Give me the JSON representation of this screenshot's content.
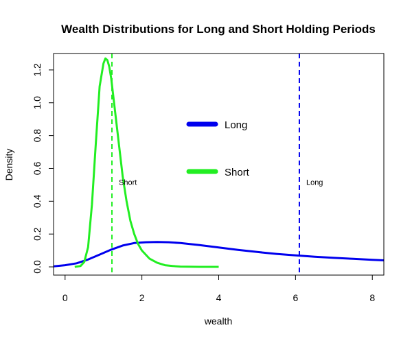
{
  "chart_data": {
    "type": "line",
    "title": "Wealth Distributions for Long and Short Holding Periods",
    "xlabel": "wealth",
    "ylabel": "Density",
    "xlim": [
      -0.3,
      8.3
    ],
    "ylim": [
      -0.05,
      1.3
    ],
    "xticks": [
      0,
      2,
      4,
      6,
      8
    ],
    "yticks": [
      0.0,
      0.2,
      0.4,
      0.6,
      0.8,
      1.0,
      1.2
    ],
    "legend_position": "center",
    "series": [
      {
        "name": "Long",
        "color": "#0000ee",
        "x": [
          -0.3,
          0,
          0.3,
          0.6,
          0.9,
          1.2,
          1.5,
          1.8,
          2.1,
          2.4,
          2.7,
          3.0,
          3.5,
          4.0,
          4.5,
          5.0,
          5.5,
          6.0,
          6.5,
          7.0,
          7.5,
          8.0,
          8.3
        ],
        "y": [
          0.003,
          0.01,
          0.022,
          0.045,
          0.075,
          0.105,
          0.13,
          0.145,
          0.15,
          0.152,
          0.15,
          0.145,
          0.133,
          0.118,
          0.104,
          0.091,
          0.079,
          0.07,
          0.062,
          0.055,
          0.049,
          0.043,
          0.04
        ]
      },
      {
        "name": "Short",
        "color": "#22ee22",
        "x": [
          0.25,
          0.4,
          0.5,
          0.6,
          0.7,
          0.8,
          0.9,
          1.0,
          1.05,
          1.1,
          1.15,
          1.2,
          1.3,
          1.4,
          1.5,
          1.6,
          1.7,
          1.8,
          1.9,
          2.0,
          2.2,
          2.4,
          2.6,
          2.8,
          3.0,
          3.5,
          4.0
        ],
        "y": [
          0.0,
          0.005,
          0.03,
          0.12,
          0.38,
          0.75,
          1.1,
          1.24,
          1.27,
          1.26,
          1.22,
          1.15,
          0.95,
          0.75,
          0.55,
          0.4,
          0.28,
          0.2,
          0.14,
          0.1,
          0.05,
          0.025,
          0.01,
          0.005,
          0.002,
          0.0,
          0.0
        ]
      }
    ],
    "vlines": [
      {
        "label": "Short",
        "x": 1.22,
        "color": "#22ee22",
        "label_y": 0.5
      },
      {
        "label": "Long",
        "x": 6.1,
        "color": "#0000ee",
        "label_y": 0.5
      }
    ]
  }
}
